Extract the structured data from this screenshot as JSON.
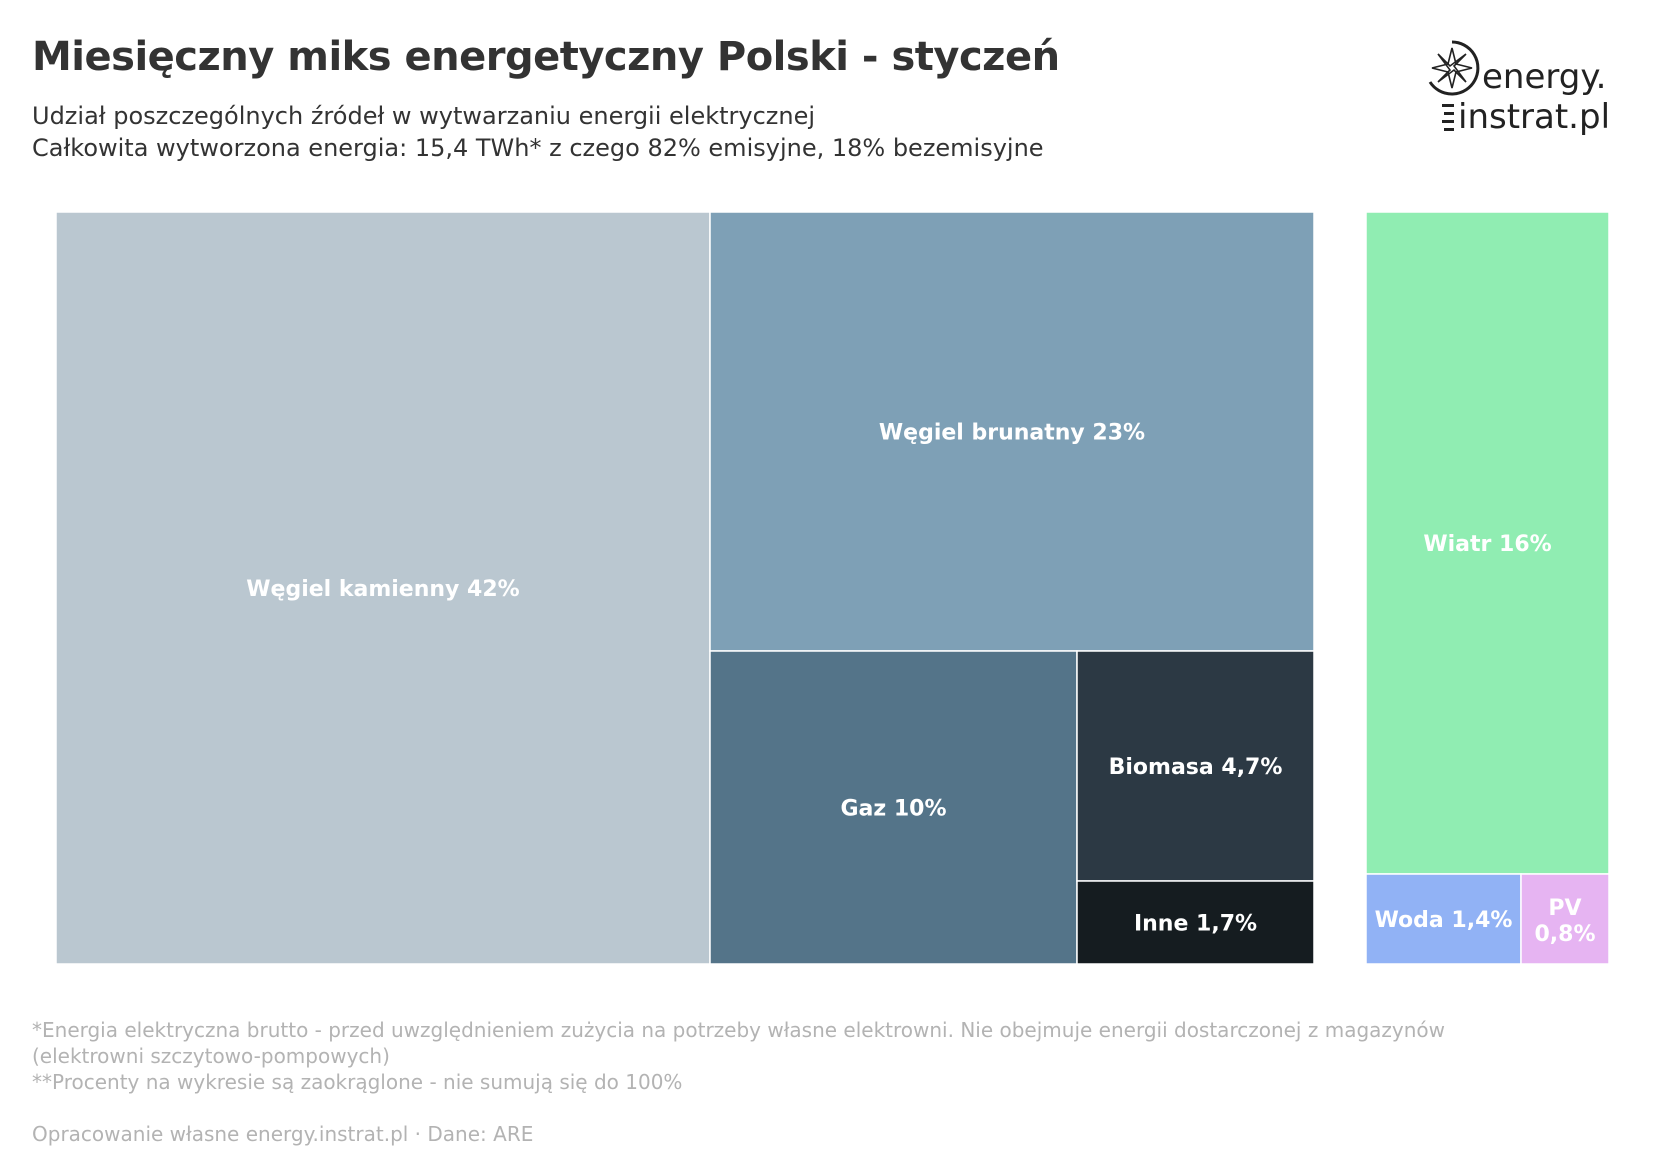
{
  "header": {
    "title": "Miesięczny miks energetyczny Polski - styczeń",
    "subtitle_line1": "Udział poszczególnych źródeł w wytwarzaniu energii elektrycznej",
    "subtitle_line2": "Całkowita wytworzona energia: 15,4 TWh* z czego 82% emisyjne, 18% bezemisyjne"
  },
  "logo": {
    "line1": "energy.",
    "line2": "instrat.pl"
  },
  "chart_data": {
    "type": "treemap",
    "groups": [
      {
        "items": [
          {
            "label": "Węgiel kamienny 42%",
            "value": 42,
            "color": "#bac7d0"
          },
          {
            "label": "Węgiel brunatny 23%",
            "value": 23,
            "color": "#7ea0b6"
          },
          {
            "label": "Gaz 10%",
            "value": 10,
            "color": "#547489"
          },
          {
            "label": "Biomasa 4,7%",
            "value": 4.7,
            "color": "#2c3944"
          },
          {
            "label": "Inne 1,7%",
            "value": 1.7,
            "color": "#151c20"
          }
        ]
      },
      {
        "items": [
          {
            "label": "Wiatr 16%",
            "value": 16,
            "color": "#90edb2"
          },
          {
            "label": "Woda 1,4%",
            "value": 1.4,
            "color": "#91b2f5"
          },
          {
            "label": "PV 0,8%",
            "value": 0.8,
            "color": "#e6b4f2"
          }
        ]
      }
    ]
  },
  "footer": {
    "note1_line1": "*Energia elektryczna brutto - przed uwzględnieniem zużycia na potrzeby własne elektrowni. Nie obejmuje energii dostarczonej z magazynów",
    "note1_line2": "(elektrowni szczytowo-pompowych)",
    "note2": "**Procenty na wykresie są zaokrąglone - nie sumują się do 100%",
    "source": "Opracowanie własne energy.instrat.pl · Dane: ARE"
  }
}
